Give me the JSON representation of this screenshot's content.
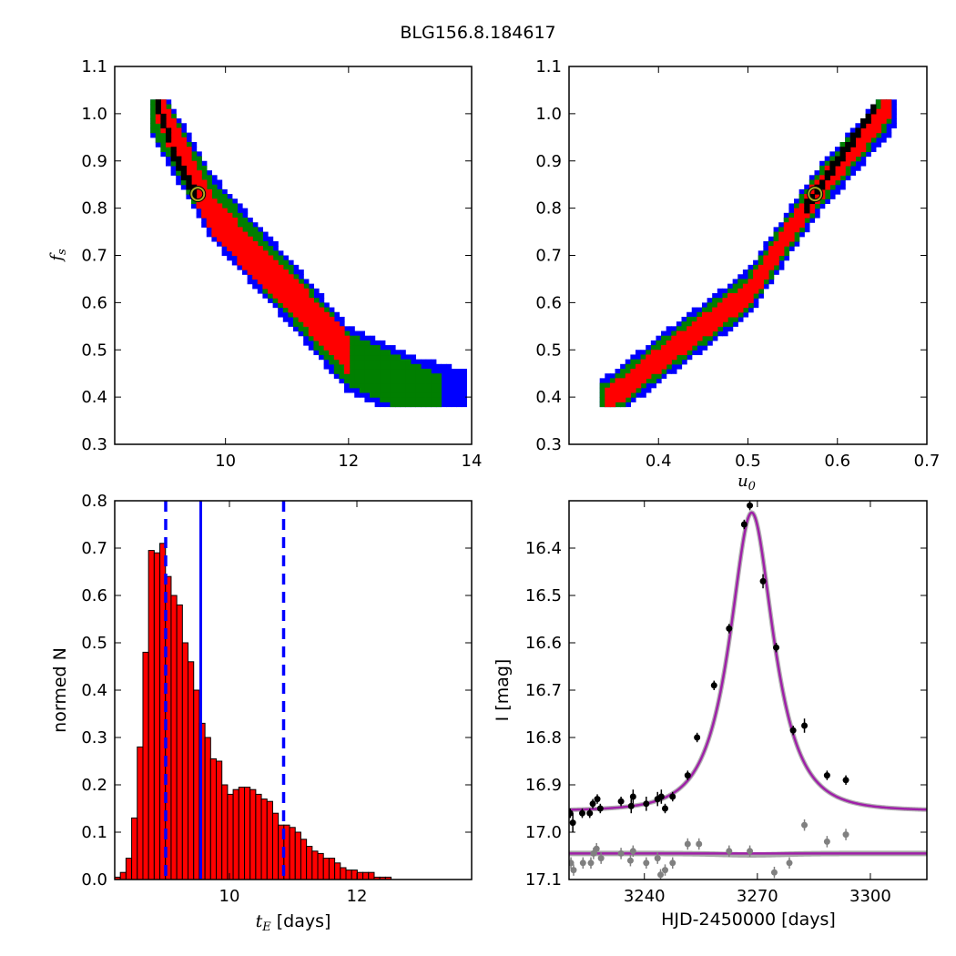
{
  "figure": {
    "title": "BLG156.8.184617",
    "colors": {
      "blue": "#0000ff",
      "green": "#007f00",
      "red": "#ff0000",
      "black": "#000000",
      "marker_ring": "#aaaa22",
      "gray": "#808080",
      "model": "#9f20a8"
    }
  },
  "chart_data": [
    {
      "id": "panel-fs-tE",
      "type": "heatmap",
      "description_levels": [
        "blue",
        "green",
        "red",
        "black"
      ],
      "xlabel": "",
      "ylabel": "f_s",
      "xlim": [
        8.2,
        14
      ],
      "ylim": [
        0.3,
        1.1
      ],
      "xticks": [
        10,
        12,
        14
      ],
      "yticks": [
        0.3,
        0.4,
        0.5,
        0.6,
        0.7,
        0.8,
        0.9,
        1.0,
        1.1
      ],
      "best_fit": {
        "x": 9.55,
        "y": 0.83
      },
      "bands": [
        {
          "level": "blue",
          "ridge": [
            [
              8.8,
              1.02
            ],
            [
              9.8,
              0.8
            ],
            [
              10.5,
              0.7
            ],
            [
              11.2,
              0.6
            ],
            [
              12.0,
              0.48
            ],
            [
              13.0,
              0.42
            ],
            [
              13.9,
              0.385
            ]
          ],
          "halfwidth": 0.065
        },
        {
          "level": "green",
          "ridge": [
            [
              8.8,
              1.02
            ],
            [
              9.8,
              0.8
            ],
            [
              10.5,
              0.7
            ],
            [
              11.2,
              0.6
            ],
            [
              12.0,
              0.48
            ],
            [
              13.0,
              0.42
            ],
            [
              13.5,
              0.39
            ]
          ],
          "halfwidth": 0.05
        },
        {
          "level": "red",
          "ridge": [
            [
              8.9,
              1.02
            ],
            [
              9.8,
              0.78
            ],
            [
              10.5,
              0.69
            ],
            [
              11.2,
              0.6
            ],
            [
              12.0,
              0.49
            ]
          ],
          "halfwidth": 0.035
        },
        {
          "level": "black",
          "ridge": [
            [
              8.9,
              1.02
            ],
            [
              9.2,
              0.9
            ],
            [
              9.5,
              0.83
            ]
          ],
          "halfwidth": 0.01
        }
      ]
    },
    {
      "id": "panel-fs-u0",
      "type": "heatmap",
      "xlabel": "u_0",
      "ylabel": "",
      "xlim": [
        0.3,
        0.7
      ],
      "ylim": [
        0.3,
        1.1
      ],
      "xticks": [
        0.4,
        0.5,
        0.6,
        0.7
      ],
      "yticks": [
        0.3,
        0.4,
        0.5,
        0.6,
        0.7,
        0.8,
        0.9,
        1.0,
        1.1
      ],
      "best_fit": {
        "x": 0.575,
        "y": 0.83
      },
      "bands": [
        {
          "level": "blue",
          "ridge": [
            [
              0.335,
              0.385
            ],
            [
              0.4,
              0.48
            ],
            [
              0.5,
              0.62
            ],
            [
              0.575,
              0.83
            ],
            [
              0.665,
              1.02
            ]
          ],
          "halfwidth": 0.045
        },
        {
          "level": "green",
          "ridge": [
            [
              0.335,
              0.385
            ],
            [
              0.4,
              0.48
            ],
            [
              0.5,
              0.62
            ],
            [
              0.575,
              0.83
            ],
            [
              0.66,
              1.02
            ]
          ],
          "halfwidth": 0.033
        },
        {
          "level": "red",
          "ridge": [
            [
              0.34,
              0.39
            ],
            [
              0.4,
              0.48
            ],
            [
              0.5,
              0.62
            ],
            [
              0.575,
              0.83
            ],
            [
              0.66,
              1.02
            ]
          ],
          "halfwidth": 0.02
        },
        {
          "level": "black",
          "ridge": [
            [
              0.56,
              0.79
            ],
            [
              0.6,
              0.9
            ],
            [
              0.645,
              1.02
            ]
          ],
          "halfwidth": 0.006
        }
      ]
    },
    {
      "id": "panel-hist",
      "type": "bar",
      "xlabel": "t_E [days]",
      "ylabel": "normed N",
      "xlim": [
        8.2,
        13.8
      ],
      "ylim": [
        0.0,
        0.8
      ],
      "xticks": [
        10,
        12
      ],
      "yticks": [
        0.0,
        0.1,
        0.2,
        0.3,
        0.4,
        0.5,
        0.6,
        0.7,
        0.8
      ],
      "bin_width": 0.0885,
      "bin_start": 8.2,
      "values": [
        0.005,
        0.015,
        0.045,
        0.13,
        0.28,
        0.48,
        0.695,
        0.69,
        0.71,
        0.64,
        0.6,
        0.58,
        0.5,
        0.46,
        0.4,
        0.33,
        0.3,
        0.255,
        0.25,
        0.2,
        0.18,
        0.19,
        0.195,
        0.195,
        0.19,
        0.18,
        0.17,
        0.165,
        0.14,
        0.115,
        0.115,
        0.11,
        0.1,
        0.085,
        0.07,
        0.06,
        0.055,
        0.045,
        0.045,
        0.035,
        0.025,
        0.02,
        0.02,
        0.015,
        0.015,
        0.015,
        0.005,
        0.005,
        0.005
      ],
      "median_line": 9.55,
      "interval_lines": [
        9.0,
        10.85
      ]
    },
    {
      "id": "panel-lightcurve",
      "type": "scatter",
      "xlabel": "HJD-2450000 [days]",
      "ylabel": "I [mag]",
      "xlim": [
        3220,
        3315
      ],
      "ylim": [
        17.1,
        16.3
      ],
      "xticks": [
        3240,
        3270,
        3300
      ],
      "yticks": [
        16.4,
        16.5,
        16.6,
        16.7,
        16.8,
        16.9,
        17.0,
        17.1
      ],
      "model": {
        "t0": 3268.5,
        "u0": 0.575,
        "tE": 9.55,
        "fs": 0.83,
        "I_base": 16.955
      },
      "baseline_model": 17.045,
      "data": [
        {
          "x": 3220.3,
          "y": 16.96,
          "err": 0.01
        },
        {
          "x": 3221.0,
          "y": 16.98,
          "err": 0.02
        },
        {
          "x": 3223.5,
          "y": 16.96,
          "err": 0.01
        },
        {
          "x": 3225.5,
          "y": 16.96,
          "err": 0.01
        },
        {
          "x": 3226.3,
          "y": 16.94,
          "err": 0.01
        },
        {
          "x": 3227.5,
          "y": 16.93,
          "err": 0.01
        },
        {
          "x": 3228.3,
          "y": 16.95,
          "err": 0.01
        },
        {
          "x": 3233.8,
          "y": 16.935,
          "err": 0.01
        },
        {
          "x": 3236.5,
          "y": 16.945,
          "err": 0.015
        },
        {
          "x": 3237.0,
          "y": 16.925,
          "err": 0.015
        },
        {
          "x": 3240.5,
          "y": 16.94,
          "err": 0.015
        },
        {
          "x": 3243.5,
          "y": 16.93,
          "err": 0.015
        },
        {
          "x": 3244.5,
          "y": 16.925,
          "err": 0.015
        },
        {
          "x": 3245.5,
          "y": 16.95,
          "err": 0.01
        },
        {
          "x": 3247.5,
          "y": 16.925,
          "err": 0.01
        },
        {
          "x": 3251.5,
          "y": 16.88,
          "err": 0.01
        },
        {
          "x": 3254.0,
          "y": 16.8,
          "err": 0.01
        },
        {
          "x": 3258.5,
          "y": 16.69,
          "err": 0.01
        },
        {
          "x": 3262.5,
          "y": 16.57,
          "err": 0.01
        },
        {
          "x": 3266.5,
          "y": 16.35,
          "err": 0.01
        },
        {
          "x": 3268.0,
          "y": 16.31,
          "err": 0.01
        },
        {
          "x": 3271.5,
          "y": 16.47,
          "err": 0.015
        },
        {
          "x": 3275.0,
          "y": 16.61,
          "err": 0.01
        },
        {
          "x": 3279.5,
          "y": 16.785,
          "err": 0.01
        },
        {
          "x": 3282.5,
          "y": 16.775,
          "err": 0.015
        },
        {
          "x": 3288.5,
          "y": 16.88,
          "err": 0.01
        },
        {
          "x": 3293.5,
          "y": 16.89,
          "err": 0.01
        }
      ],
      "residuals": [
        {
          "x": 3220.5,
          "y": 17.065
        },
        {
          "x": 3221.2,
          "y": 17.08
        },
        {
          "x": 3223.7,
          "y": 17.065
        },
        {
          "x": 3225.8,
          "y": 17.065
        },
        {
          "x": 3226.5,
          "y": 17.045
        },
        {
          "x": 3227.3,
          "y": 17.035
        },
        {
          "x": 3228.5,
          "y": 17.055
        },
        {
          "x": 3233.8,
          "y": 17.045
        },
        {
          "x": 3236.3,
          "y": 17.06
        },
        {
          "x": 3237.0,
          "y": 17.04
        },
        {
          "x": 3240.5,
          "y": 17.065
        },
        {
          "x": 3243.5,
          "y": 17.055
        },
        {
          "x": 3244.3,
          "y": 17.09
        },
        {
          "x": 3245.5,
          "y": 17.08
        },
        {
          "x": 3247.5,
          "y": 17.065
        },
        {
          "x": 3251.5,
          "y": 17.025
        },
        {
          "x": 3254.5,
          "y": 17.025
        },
        {
          "x": 3262.5,
          "y": 17.04
        },
        {
          "x": 3268.0,
          "y": 17.04
        },
        {
          "x": 3274.5,
          "y": 17.085
        },
        {
          "x": 3278.5,
          "y": 17.065
        },
        {
          "x": 3282.5,
          "y": 16.985
        },
        {
          "x": 3288.5,
          "y": 17.02
        },
        {
          "x": 3293.5,
          "y": 17.005
        }
      ]
    }
  ]
}
